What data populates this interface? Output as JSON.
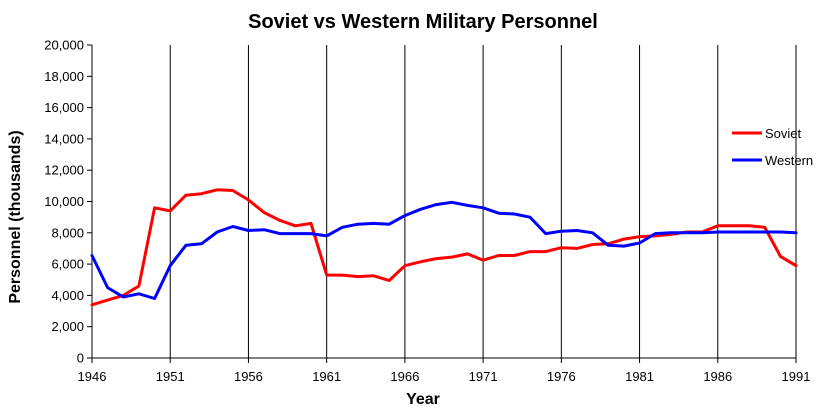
{
  "chart_data": {
    "type": "line",
    "title": "Soviet vs Western Military Personnel",
    "xlabel": "Year",
    "ylabel": "Personnel (thousands)",
    "xlim": [
      1946,
      1991
    ],
    "ylim": [
      0,
      20000
    ],
    "x_ticks": [
      "1946",
      "1951",
      "1956",
      "1961",
      "1966",
      "1971",
      "1976",
      "1981",
      "1986",
      "1991"
    ],
    "y_ticks": [
      "0",
      "2,000",
      "4,000",
      "6,000",
      "8,000",
      "10,000",
      "12,000",
      "14,000",
      "16,000",
      "18,000",
      "20,000"
    ],
    "vertical_gridlines": true,
    "legend_position": "right",
    "x": [
      1946,
      1947,
      1948,
      1949,
      1950,
      1951,
      1952,
      1953,
      1954,
      1955,
      1956,
      1957,
      1958,
      1959,
      1960,
      1961,
      1962,
      1963,
      1964,
      1965,
      1966,
      1967,
      1968,
      1969,
      1970,
      1971,
      1972,
      1973,
      1974,
      1975,
      1976,
      1977,
      1978,
      1979,
      1980,
      1981,
      1982,
      1983,
      1984,
      1985,
      1986,
      1987,
      1988,
      1989,
      1990,
      1991
    ],
    "series": [
      {
        "name": "Soviet",
        "color": "#ff0000",
        "values": [
          3400,
          3700,
          4000,
          4600,
          9600,
          9400,
          10400,
          10500,
          10750,
          10700,
          10100,
          9300,
          8800,
          8450,
          8600,
          5300,
          5300,
          5200,
          5250,
          4950,
          5900,
          6150,
          6350,
          6450,
          6650,
          6250,
          6550,
          6550,
          6800,
          6800,
          7050,
          7000,
          7250,
          7300,
          7600,
          7750,
          7800,
          7900,
          8050,
          8050,
          8450,
          8450,
          8450,
          8350,
          6500,
          5900
        ]
      },
      {
        "name": "Western",
        "color": "#0000ff",
        "values": [
          6550,
          4500,
          3900,
          4100,
          3800,
          5900,
          7200,
          7300,
          8050,
          8400,
          8150,
          8200,
          7950,
          7950,
          7950,
          7800,
          8350,
          8550,
          8600,
          8550,
          9100,
          9500,
          9800,
          9950,
          9750,
          9600,
          9250,
          9200,
          9000,
          7950,
          8100,
          8150,
          8000,
          7200,
          7150,
          7350,
          7950,
          8000,
          8000,
          8000,
          8050,
          8050,
          8050,
          8050,
          8050,
          8000
        ]
      }
    ]
  }
}
